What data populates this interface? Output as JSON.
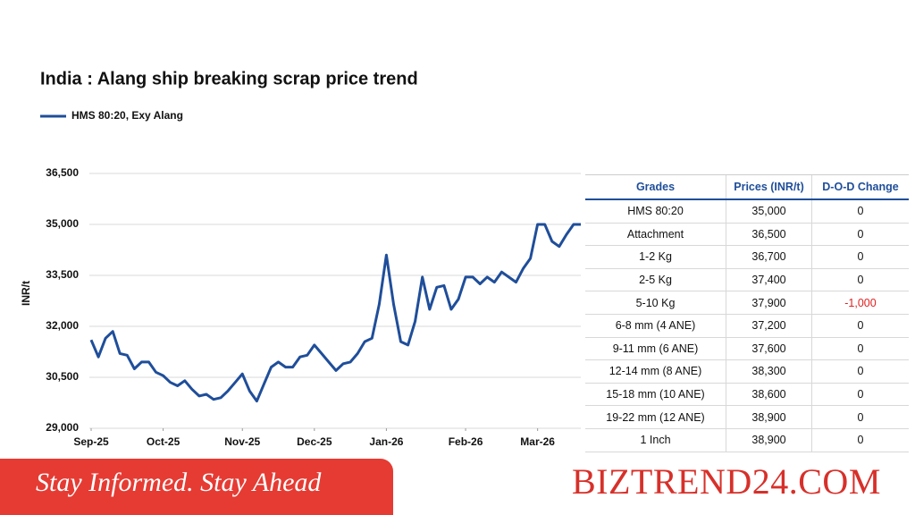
{
  "chart_data": {
    "type": "line",
    "title": "India : Alang ship breaking scrap price trend",
    "y_label": "INR/t",
    "series": [
      {
        "name": "HMS 80:20, Exy Alang",
        "color": "#1f4e9a",
        "values": [
          31600,
          31100,
          31650,
          31850,
          31200,
          31150,
          30750,
          30950,
          30950,
          30650,
          30550,
          30350,
          30250,
          30400,
          30150,
          29950,
          30000,
          29850,
          29900,
          30100,
          30350,
          30600,
          30100,
          29800,
          30300,
          30800,
          30950,
          30800,
          30800,
          31100,
          31150,
          31450,
          31200,
          30950,
          30700,
          30900,
          30950,
          31200,
          31550,
          31650,
          32650,
          34100,
          32650,
          31550,
          31450,
          32150,
          33450,
          32500,
          33150,
          33200,
          32500,
          32800,
          33450,
          33450,
          33250,
          33450,
          33300,
          33600,
          33450,
          33300,
          33700,
          34000,
          35000,
          35000,
          34500,
          34350,
          34700,
          35000,
          35000
        ]
      }
    ],
    "xlim": [
      0,
      68
    ],
    "xticks": [
      {
        "value": 0,
        "label": "Sep-25"
      },
      {
        "value": 10,
        "label": "Oct-25"
      },
      {
        "value": 21,
        "label": "Nov-25"
      },
      {
        "value": 31,
        "label": "Dec-25"
      },
      {
        "value": 41,
        "label": "Jan-26"
      },
      {
        "value": 52,
        "label": "Feb-26"
      },
      {
        "value": 62,
        "label": "Mar-26"
      }
    ],
    "ylim": [
      29000,
      36500
    ],
    "yticks": [
      {
        "value": 29000,
        "label": "29,000"
      },
      {
        "value": 30500,
        "label": "30,500"
      },
      {
        "value": 32000,
        "label": "32,000"
      },
      {
        "value": 33500,
        "label": "33,500"
      },
      {
        "value": 35000,
        "label": "35,000"
      },
      {
        "value": 36500,
        "label": "36,500"
      }
    ],
    "grid": true
  },
  "table": {
    "header": [
      "Grades",
      "Prices (INR/t)",
      "D-O-D Change"
    ],
    "negative_color": "#e02020",
    "rows": [
      [
        "HMS 80:20",
        "35,000",
        "0"
      ],
      [
        "Attachment",
        "36,500",
        "0"
      ],
      [
        "1-2 Kg",
        "36,700",
        "0"
      ],
      [
        "2-5 Kg",
        "37,400",
        "0"
      ],
      [
        "5-10 Kg",
        "37,900",
        "-1,000"
      ],
      [
        "6-8 mm (4 ANE)",
        "37,200",
        "0"
      ],
      [
        "9-11 mm (6 ANE)",
        "37,600",
        "0"
      ],
      [
        "12-14 mm (8 ANE)",
        "38,300",
        "0"
      ],
      [
        "15-18 mm (10 ANE)",
        "38,600",
        "0"
      ],
      [
        "19-22 mm (12 ANE)",
        "38,900",
        "0"
      ],
      [
        "1 Inch",
        "38,900",
        "0"
      ]
    ]
  },
  "footer": {
    "tagline": "Stay Informed. Stay Ahead",
    "brand": "BIZTREND24.COM"
  }
}
